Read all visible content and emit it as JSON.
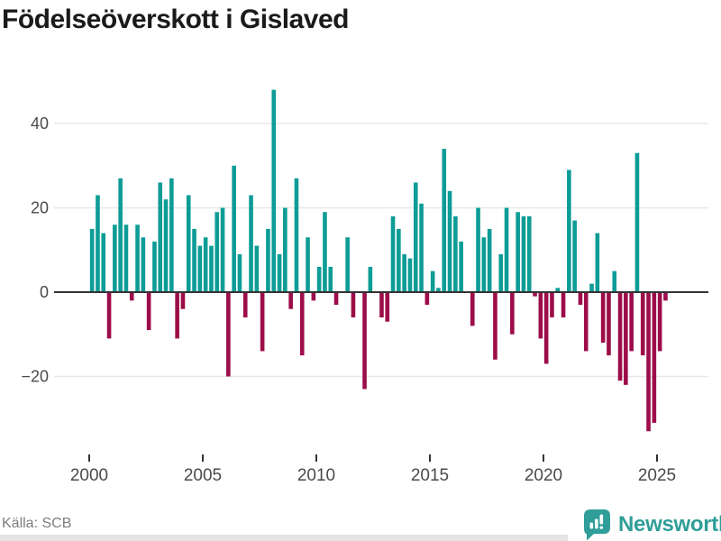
{
  "title": "Födelseöverskott i Gislaved",
  "source": "Källa: SCB",
  "branding": {
    "logo_text": "Newsworthy",
    "logo_icon": "newsworthy-speech-bubble-bar-chart-icon"
  },
  "colors": {
    "positive_bar": "#0d9c96",
    "negative_bar": "#9c0d49",
    "axis": "#333333",
    "gridline": "#e8e8e8",
    "tick_label": "#4a4a4a",
    "title_text": "#1a1a1a",
    "source_text": "#7d7d7d",
    "logo": "#2f9e98",
    "background": "#ffffff",
    "footer_strip": "#e4e4e4"
  },
  "chart_data": {
    "type": "bar",
    "title": "Födelseöverskott i Gislaved",
    "xlabel": "",
    "ylabel": "",
    "period": "quarterly",
    "start": "2000Q1",
    "end": "2025Q2",
    "ylim": [
      -36,
      50
    ],
    "grid": "horizontal",
    "legend": "none",
    "y_ticks": [
      {
        "label": "40",
        "value": 40
      },
      {
        "label": "20",
        "value": 20
      },
      {
        "label": "0",
        "value": 0
      },
      {
        "label": "−20",
        "value": -20
      }
    ],
    "x_ticks": [
      {
        "label": "2000",
        "year": 2000
      },
      {
        "label": "2005",
        "year": 2005
      },
      {
        "label": "2010",
        "year": 2010
      },
      {
        "label": "2015",
        "year": 2015
      },
      {
        "label": "2020",
        "year": 2020
      },
      {
        "label": "2025",
        "year": 2025
      }
    ],
    "values_by_year": {
      "2000": [
        15,
        23,
        14,
        -11
      ],
      "2001": [
        16,
        27,
        16,
        -2
      ],
      "2002": [
        16,
        13,
        -9,
        12
      ],
      "2003": [
        26,
        22,
        27,
        -11
      ],
      "2004": [
        -4,
        23,
        15,
        11
      ],
      "2005": [
        13,
        11,
        19,
        20
      ],
      "2006": [
        -20,
        30,
        9,
        -6
      ],
      "2007": [
        23,
        11,
        -14,
        15
      ],
      "2008": [
        48,
        9,
        20,
        -4
      ],
      "2009": [
        27,
        -15,
        13,
        -2
      ],
      "2010": [
        6,
        19,
        6,
        -3
      ],
      "2011": [
        0,
        13,
        -6,
        0
      ],
      "2012": [
        -23,
        6,
        0,
        -6
      ],
      "2013": [
        -7,
        18,
        15,
        9
      ],
      "2014": [
        8,
        26,
        21,
        -3
      ],
      "2015": [
        5,
        1,
        34,
        24
      ],
      "2016": [
        18,
        12,
        0,
        -8
      ],
      "2017": [
        20,
        13,
        15,
        -16
      ],
      "2018": [
        9,
        20,
        -10,
        19
      ],
      "2019": [
        18,
        18,
        -1,
        -11
      ],
      "2020": [
        -17,
        -6,
        1,
        -6
      ],
      "2021": [
        29,
        17,
        -3,
        -14
      ],
      "2022": [
        2,
        14,
        -12,
        -15
      ],
      "2023": [
        5,
        -21,
        -22,
        -14
      ],
      "2024": [
        33,
        -15,
        -33,
        -31
      ],
      "2025": [
        -14,
        -2
      ]
    }
  }
}
